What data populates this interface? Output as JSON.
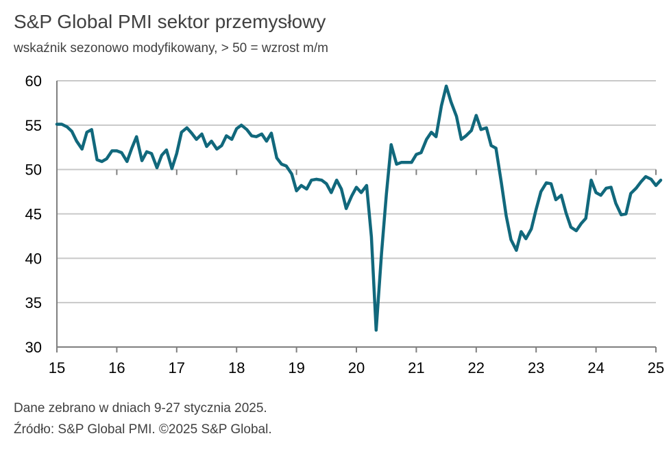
{
  "title": "S&P Global PMI sektor przemysłowy",
  "subtitle": "wskaźnik sezonowo modyfikowany, > 50 = wzrost m/m",
  "footer": {
    "line1": "Dane zebrano w dniach 9-27 stycznia 2025.",
    "line2": "Źródło: S&P Global PMI. ©2025 S&P Global."
  },
  "colors": {
    "line": "#11687c",
    "grid": "#c8c8c8",
    "axis": "#7f7f7f"
  },
  "chart_data": {
    "type": "line",
    "title": "S&P Global PMI sektor przemysłowy",
    "subtitle": "wskaźnik sezonowo modyfikowany, > 50 = wzrost m/m",
    "xlabel": "",
    "ylabel": "",
    "xlim": [
      2015,
      2025
    ],
    "ylim": [
      30,
      60
    ],
    "y_ticks": [
      30,
      35,
      40,
      45,
      50,
      55,
      60
    ],
    "x_ticks": [
      2015,
      2016,
      2017,
      2018,
      2019,
      2020,
      2021,
      2022,
      2023,
      2024,
      2025
    ],
    "x_tick_labels": [
      "15",
      "16",
      "17",
      "18",
      "19",
      "20",
      "21",
      "22",
      "23",
      "24",
      "25"
    ],
    "grid": "horizontal",
    "series": [
      {
        "points": [
          [
            2015.0,
            55.1
          ],
          [
            2015.08,
            55.1
          ],
          [
            2015.17,
            54.8
          ],
          [
            2015.25,
            54.3
          ],
          [
            2015.33,
            53.2
          ],
          [
            2015.42,
            52.3
          ],
          [
            2015.5,
            54.2
          ],
          [
            2015.58,
            54.5
          ],
          [
            2015.67,
            51.1
          ],
          [
            2015.75,
            50.9
          ],
          [
            2015.83,
            51.2
          ],
          [
            2015.92,
            52.1
          ],
          [
            2016.0,
            52.1
          ],
          [
            2016.08,
            51.9
          ],
          [
            2016.17,
            50.9
          ],
          [
            2016.25,
            52.4
          ],
          [
            2016.33,
            53.7
          ],
          [
            2016.42,
            51.0
          ],
          [
            2016.5,
            52.0
          ],
          [
            2016.58,
            51.8
          ],
          [
            2016.67,
            50.2
          ],
          [
            2016.75,
            51.6
          ],
          [
            2016.83,
            52.2
          ],
          [
            2016.92,
            50.1
          ],
          [
            2017.0,
            51.8
          ],
          [
            2017.08,
            54.2
          ],
          [
            2017.17,
            54.7
          ],
          [
            2017.25,
            54.1
          ],
          [
            2017.33,
            53.4
          ],
          [
            2017.42,
            54.0
          ],
          [
            2017.5,
            52.6
          ],
          [
            2017.58,
            53.2
          ],
          [
            2017.67,
            52.3
          ],
          [
            2017.75,
            52.7
          ],
          [
            2017.83,
            53.8
          ],
          [
            2017.92,
            53.4
          ],
          [
            2018.0,
            54.6
          ],
          [
            2018.08,
            55.0
          ],
          [
            2018.17,
            54.5
          ],
          [
            2018.25,
            53.8
          ],
          [
            2018.33,
            53.7
          ],
          [
            2018.42,
            54.0
          ],
          [
            2018.5,
            53.2
          ],
          [
            2018.58,
            54.1
          ],
          [
            2018.67,
            51.3
          ],
          [
            2018.75,
            50.6
          ],
          [
            2018.83,
            50.4
          ],
          [
            2018.92,
            49.5
          ],
          [
            2019.0,
            47.6
          ],
          [
            2019.08,
            48.2
          ],
          [
            2019.17,
            47.8
          ],
          [
            2019.25,
            48.8
          ],
          [
            2019.33,
            48.9
          ],
          [
            2019.42,
            48.8
          ],
          [
            2019.5,
            48.4
          ],
          [
            2019.58,
            47.4
          ],
          [
            2019.67,
            48.8
          ],
          [
            2019.75,
            47.8
          ],
          [
            2019.83,
            45.6
          ],
          [
            2019.92,
            47.0
          ],
          [
            2020.0,
            48.0
          ],
          [
            2020.08,
            47.4
          ],
          [
            2020.17,
            48.2
          ],
          [
            2020.25,
            42.4
          ],
          [
            2020.33,
            31.9
          ],
          [
            2020.42,
            40.6
          ],
          [
            2020.5,
            47.2
          ],
          [
            2020.58,
            52.8
          ],
          [
            2020.67,
            50.6
          ],
          [
            2020.75,
            50.8
          ],
          [
            2020.83,
            50.8
          ],
          [
            2020.92,
            50.8
          ],
          [
            2021.0,
            51.7
          ],
          [
            2021.08,
            51.9
          ],
          [
            2021.17,
            53.4
          ],
          [
            2021.25,
            54.2
          ],
          [
            2021.33,
            53.7
          ],
          [
            2021.42,
            57.2
          ],
          [
            2021.5,
            59.4
          ],
          [
            2021.58,
            57.6
          ],
          [
            2021.67,
            56.0
          ],
          [
            2021.75,
            53.4
          ],
          [
            2021.83,
            53.8
          ],
          [
            2021.92,
            54.4
          ],
          [
            2022.0,
            56.1
          ],
          [
            2022.08,
            54.5
          ],
          [
            2022.17,
            54.7
          ],
          [
            2022.25,
            52.7
          ],
          [
            2022.33,
            52.4
          ],
          [
            2022.42,
            48.5
          ],
          [
            2022.5,
            44.8
          ],
          [
            2022.58,
            42.1
          ],
          [
            2022.67,
            40.9
          ],
          [
            2022.75,
            43.0
          ],
          [
            2022.83,
            42.2
          ],
          [
            2022.92,
            43.3
          ],
          [
            2023.0,
            45.5
          ],
          [
            2023.08,
            47.5
          ],
          [
            2023.17,
            48.5
          ],
          [
            2023.25,
            48.4
          ],
          [
            2023.33,
            46.6
          ],
          [
            2023.42,
            47.1
          ],
          [
            2023.5,
            45.1
          ],
          [
            2023.58,
            43.5
          ],
          [
            2023.67,
            43.1
          ],
          [
            2023.75,
            43.9
          ],
          [
            2023.83,
            44.5
          ],
          [
            2023.92,
            48.8
          ],
          [
            2024.0,
            47.4
          ],
          [
            2024.08,
            47.1
          ],
          [
            2024.17,
            47.9
          ],
          [
            2024.25,
            48.0
          ],
          [
            2024.33,
            46.2
          ],
          [
            2024.42,
            44.9
          ],
          [
            2024.5,
            45.0
          ],
          [
            2024.58,
            47.3
          ],
          [
            2024.67,
            47.9
          ],
          [
            2024.75,
            48.6
          ],
          [
            2024.83,
            49.2
          ],
          [
            2024.92,
            48.9
          ],
          [
            2025.0,
            48.2
          ],
          [
            2025.08,
            48.8
          ]
        ]
      }
    ]
  }
}
